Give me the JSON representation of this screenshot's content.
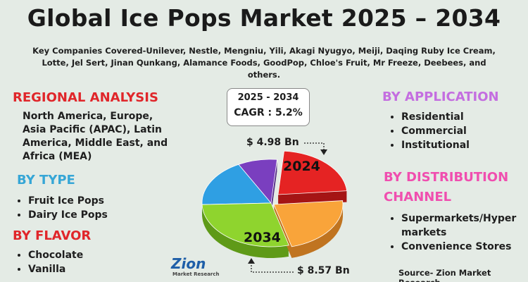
{
  "title": "Global Ice Pops Market 2025 – 2034",
  "companies": "Key Companies Covered-Unilever, Nestle, Mengniu, Yili, Akagi Nyugyo, Meiji, Daqing Ruby Ice Cream, Lotte, Jel Sert, Jinan Qunkang, Alamance Foods, GoodPop, Chloe's Fruit, Mr Freeze, Deebees, and others.",
  "regional": {
    "heading": "REGIONAL ANALYSIS",
    "text": "North America, Europe, Asia Pacific (APAC), Latin America, Middle East, and Africa (MEA)"
  },
  "by_type": {
    "heading": "BY TYPE",
    "items": [
      "Fruit Ice Pops",
      "Dairy Ice Pops"
    ]
  },
  "by_flavor": {
    "heading": "BY FLAVOR",
    "items": [
      "Chocolate",
      "Vanilla"
    ]
  },
  "by_application": {
    "heading": "BY APPLICATION",
    "items": [
      "Residential",
      "Commercial",
      "Institutional"
    ]
  },
  "by_distribution": {
    "heading": "BY DISTRIBUTION CHANNEL",
    "items": [
      "Supermarkets/Hypermarkets",
      "Convenience Stores"
    ]
  },
  "cagr": {
    "period": "2025 - 2034",
    "rate": "CAGR : 5.2%"
  },
  "market": {
    "start_year": "2024",
    "start_value": "$ 4.98 Bn",
    "end_year": "2034",
    "end_value": "$ 8.57 Bn"
  },
  "logo": {
    "name": "Zion",
    "sub": "Market Research"
  },
  "source": "Source- Zion Market Research"
}
